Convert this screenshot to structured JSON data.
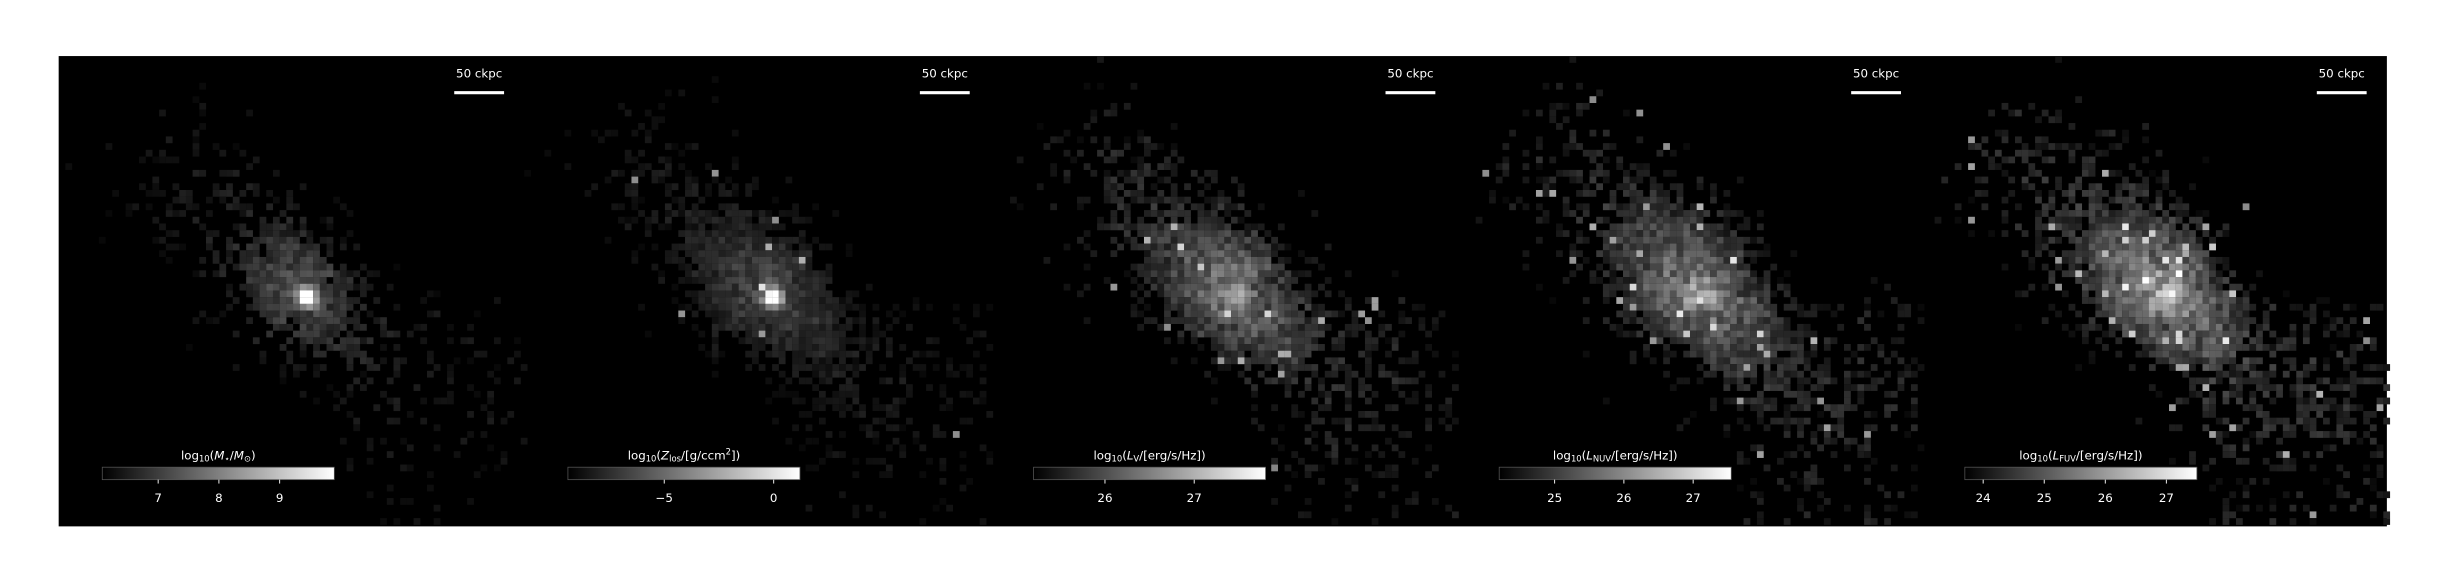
{
  "panels": [
    {
      "scale_bar": "50 ckpc",
      "colorbar": {
        "label": [
          {
            "text": "log"
          },
          {
            "text": "10",
            "sub": true
          },
          {
            "text": "("
          },
          {
            "text": "M",
            "italic": true
          },
          {
            "text": "⋆",
            "sub": true
          },
          {
            "text": "/"
          },
          {
            "text": "M",
            "italic": true
          },
          {
            "text": "⊙",
            "sub": true
          },
          {
            "text": ")"
          }
        ],
        "clim": [
          6.08,
          9.9
        ],
        "ticks": [
          7,
          8,
          9
        ]
      }
    },
    {
      "scale_bar": "50 ckpc",
      "colorbar": {
        "label": [
          {
            "text": "log"
          },
          {
            "text": "10",
            "sub": true
          },
          {
            "text": "("
          },
          {
            "text": "Z",
            "italic": true
          },
          {
            "text": "los",
            "sub": true
          },
          {
            "text": "/[g/ccm"
          },
          {
            "text": "2",
            "sup": true
          },
          {
            "text": "])"
          }
        ],
        "clim": [
          -9.4,
          1.2
        ],
        "ticks": [
          {
            "value": -5,
            "label": "−5"
          },
          0
        ]
      }
    },
    {
      "scale_bar": "50 ckpc",
      "colorbar": {
        "label": [
          {
            "text": "log"
          },
          {
            "text": "10",
            "sub": true
          },
          {
            "text": "("
          },
          {
            "text": "L",
            "italic": true
          },
          {
            "text": "V",
            "sub": true
          },
          {
            "text": "/[erg/s/Hz])"
          }
        ],
        "clim": [
          25.2,
          27.8
        ],
        "ticks": [
          26,
          27
        ]
      }
    },
    {
      "scale_bar": "50 ckpc",
      "colorbar": {
        "label": [
          {
            "text": "log"
          },
          {
            "text": "10",
            "sub": true
          },
          {
            "text": "("
          },
          {
            "text": "L",
            "italic": true
          },
          {
            "text": "NUV",
            "sub": true
          },
          {
            "text": "/[erg/s/Hz])"
          }
        ],
        "clim": [
          24.2,
          27.55
        ],
        "ticks": [
          25,
          26,
          27
        ]
      }
    },
    {
      "scale_bar": "50 ckpc",
      "colorbar": {
        "label": [
          {
            "text": "log"
          },
          {
            "text": "10",
            "sub": true
          },
          {
            "text": "("
          },
          {
            "text": "L",
            "italic": true
          },
          {
            "text": "FUV",
            "sub": true
          },
          {
            "text": "/[erg/s/Hz])"
          }
        ],
        "clim": [
          23.7,
          27.5
        ],
        "ticks": [
          24,
          25,
          26,
          27
        ]
      }
    }
  ]
}
